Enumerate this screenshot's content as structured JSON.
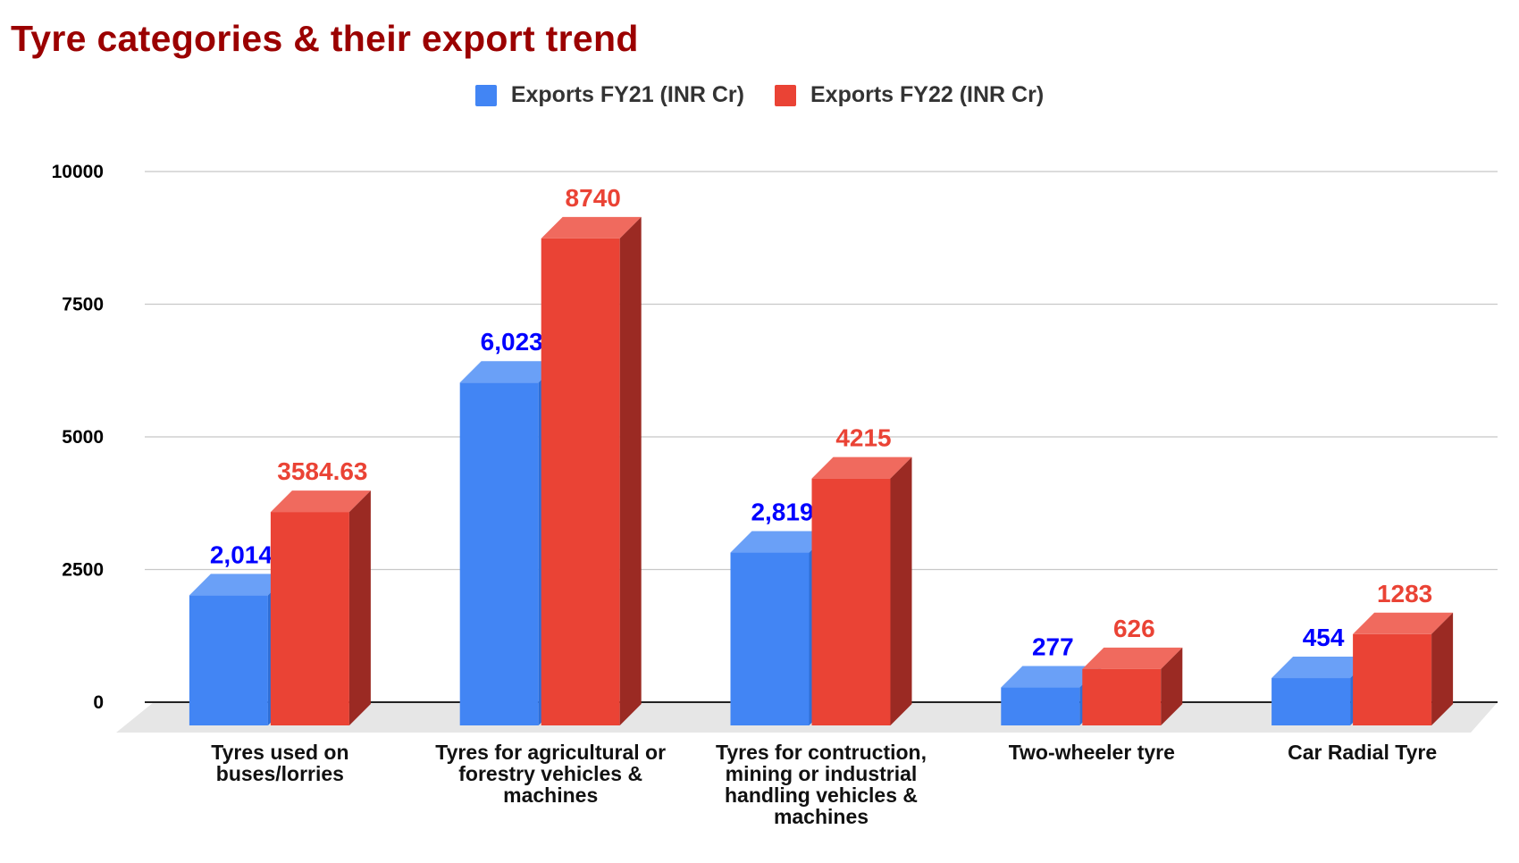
{
  "title": "Tyre categories & their export trend",
  "colors": {
    "title": "#9b0000",
    "fy21": "#4285f4",
    "fy22": "#ea4335",
    "fy21_label": "#0000ff",
    "fy22_label": "#ea4335"
  },
  "legend": [
    {
      "label": "Exports FY21 (INR Cr)",
      "color": "#4285f4"
    },
    {
      "label": "Exports FY22 (INR Cr)",
      "color": "#ea4335"
    }
  ],
  "chart_data": {
    "type": "bar",
    "title": "Tyre categories & their export trend",
    "categories": [
      "Tyres used on buses/lorries",
      "Tyres for agricultural or forestry vehicles & machines",
      "Tyres for contruction, mining or industrial handling vehicles & machines",
      "Two-wheeler tyre",
      "Car Radial Tyre"
    ],
    "series": [
      {
        "name": "Exports FY21 (INR Cr)",
        "values": [
          2014,
          6023,
          2819,
          277,
          454
        ],
        "labels": [
          "2,014",
          "6,023",
          "2,819",
          "277",
          "454"
        ]
      },
      {
        "name": "Exports FY22 (INR Cr)",
        "values": [
          3584.63,
          8740,
          4215,
          626,
          1283
        ],
        "labels": [
          "3584.63",
          "8740",
          "4215",
          "626",
          "1283"
        ]
      }
    ],
    "yticks": [
      "0",
      "2500",
      "5000",
      "7500",
      "10000"
    ],
    "ylim": [
      0,
      10000
    ],
    "grid": true,
    "legend_position": "top-center",
    "style": "3d-columns"
  }
}
